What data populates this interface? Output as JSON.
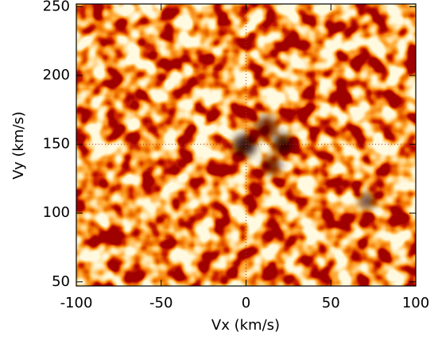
{
  "chart_data": {
    "type": "heatmap",
    "xlabel": "Vx (km/s)",
    "ylabel": "Vy (km/s)",
    "xlim": [
      -100,
      100
    ],
    "ylim": [
      47,
      252
    ],
    "xticks": [
      -100,
      -50,
      0,
      50,
      100
    ],
    "yticks": [
      50,
      100,
      150,
      200,
      250
    ],
    "hlines": [
      150
    ],
    "vlines": [
      0
    ]
  }
}
